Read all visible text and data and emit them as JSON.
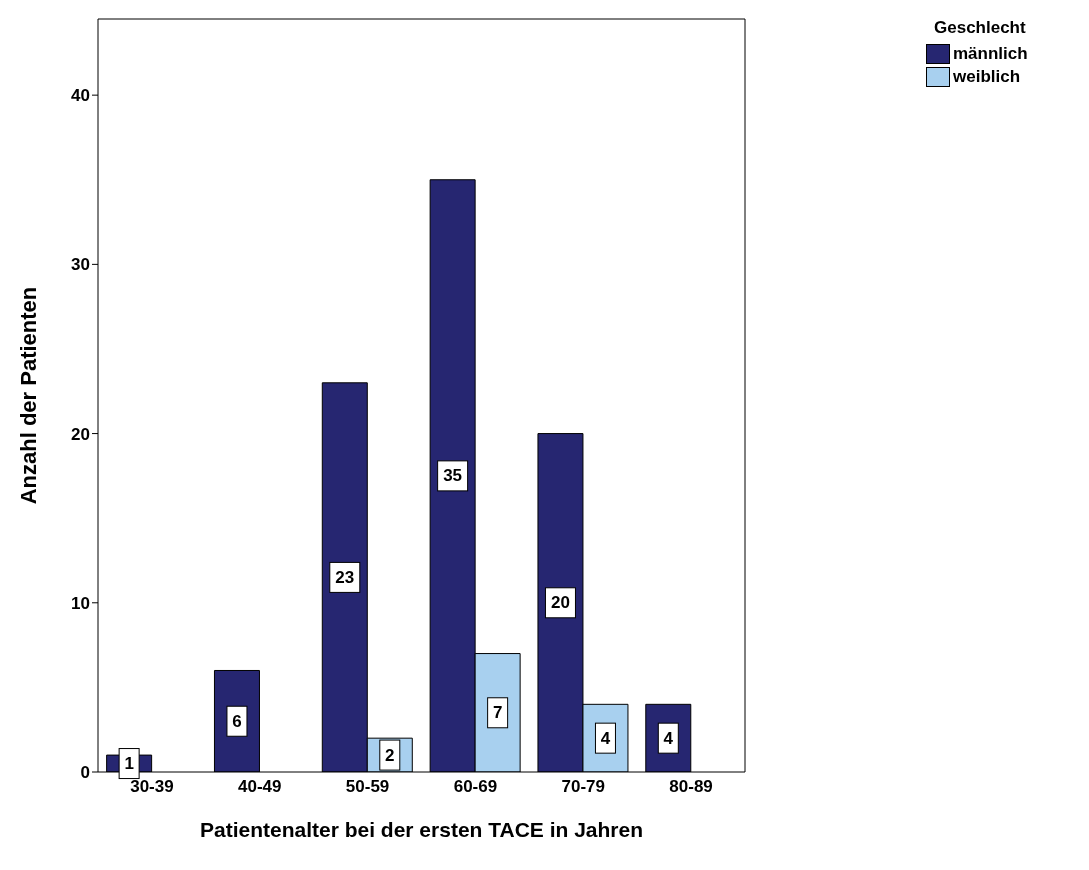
{
  "chart_data": {
    "type": "bar",
    "xlabel": "Patientenalter bei der ersten TACE in Jahren",
    "ylabel": "Anzahl der Patienten",
    "legend_title": "Geschlecht",
    "categories": [
      "30-39",
      "40-49",
      "50-59",
      "60-69",
      "70-79",
      "80-89"
    ],
    "series": [
      {
        "name": "männlich",
        "color": "#262671",
        "values": [
          1,
          6,
          23,
          35,
          20,
          4
        ]
      },
      {
        "name": "weiblich",
        "color": "#a8d0ef",
        "values": [
          null,
          null,
          2,
          7,
          4,
          null
        ]
      }
    ],
    "ylim": [
      0,
      44.5
    ],
    "yticks": [
      0,
      10,
      20,
      30,
      40
    ],
    "grid": false,
    "legend": "top right",
    "data_labels": true
  }
}
